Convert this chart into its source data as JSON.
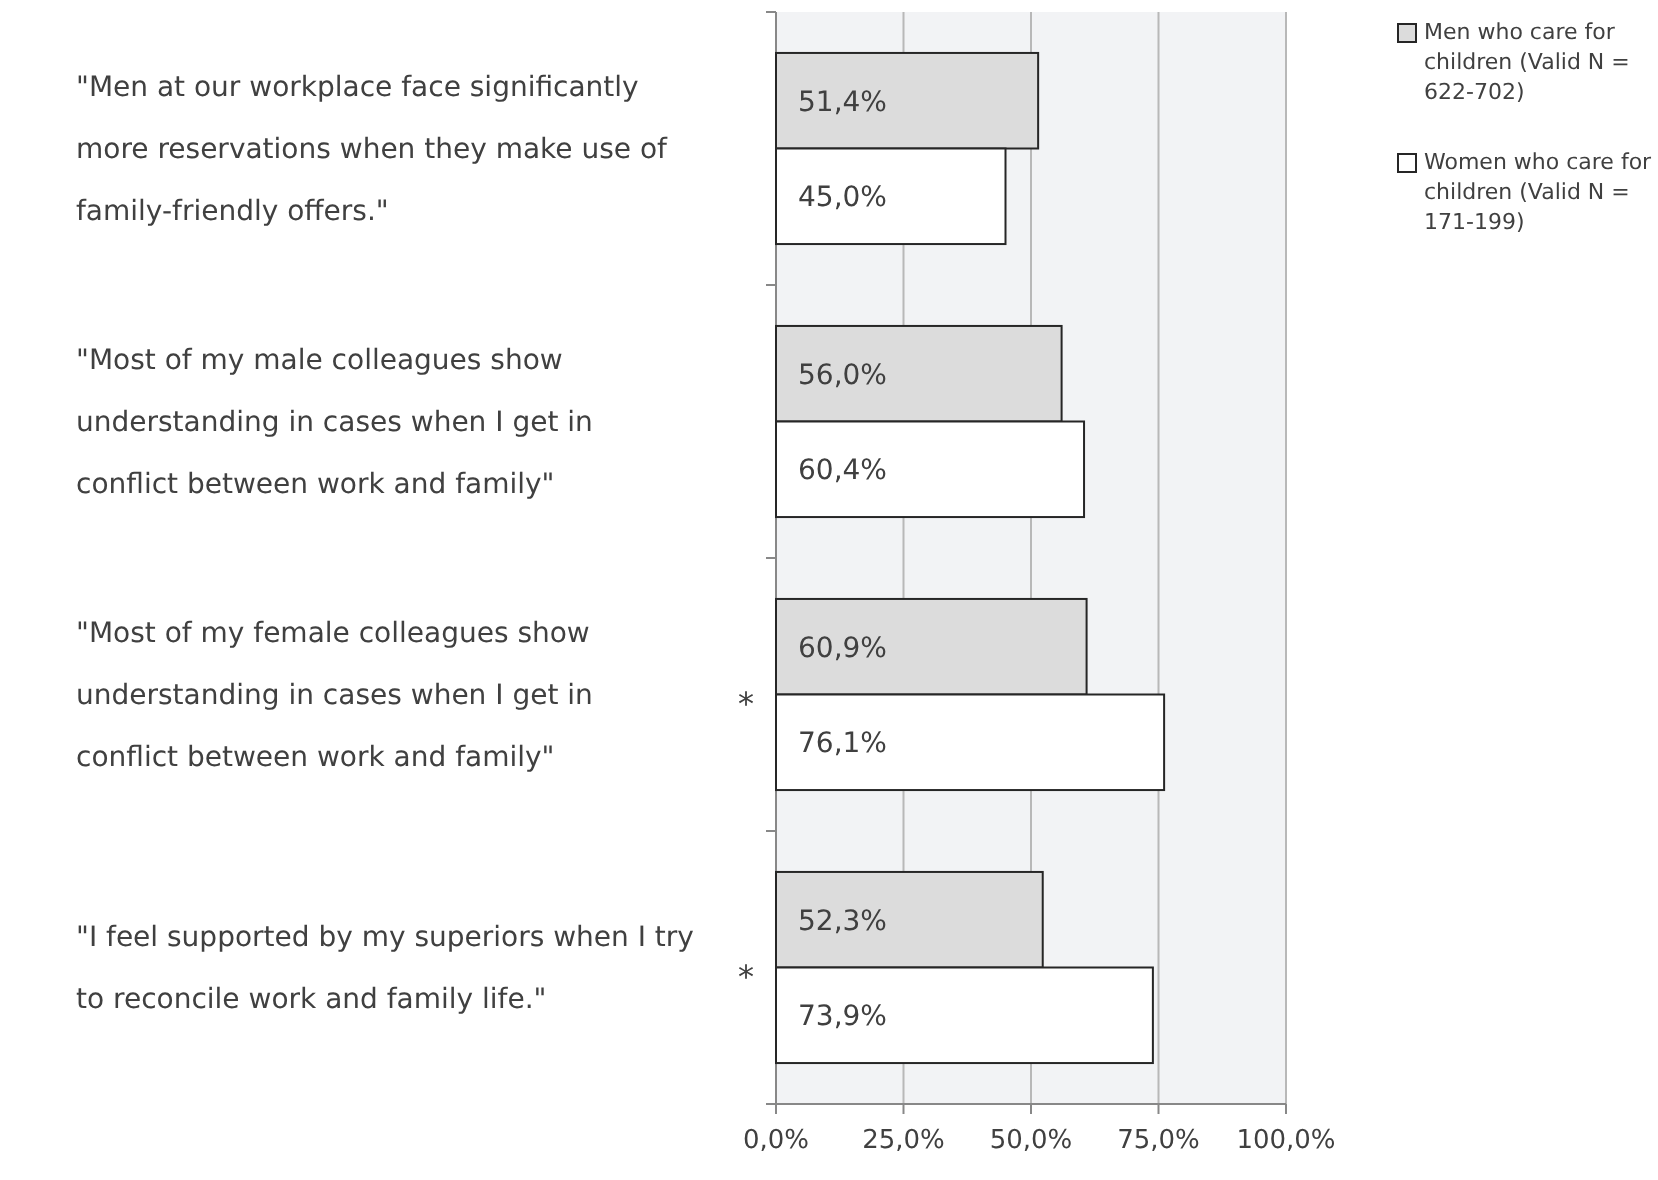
{
  "chart_data": {
    "type": "bar",
    "orientation": "horizontal",
    "categories": [
      "\"Men at our workplace face significantly more reservations when they make use of family-friendly offers.\"",
      "\"Most of my male colleagues show understanding in cases when I get in conflict between work and family\"",
      "\"Most of my female colleagues show understanding in cases when I get in conflict between work and family\"",
      "\"I feel supported by my superiors when I try to reconcile work and family life.\""
    ],
    "series": [
      {
        "name": "Men who care for children (Valid N = 622-702)",
        "color": "#dcdcdc",
        "values": [
          51.4,
          56.0,
          60.9,
          52.3
        ],
        "value_labels": [
          "51,4%",
          "56,0%",
          "60,9%",
          "52,3%"
        ]
      },
      {
        "name": "Women who care for children (Valid N = 171-199)",
        "color": "#ffffff",
        "values": [
          45.0,
          60.4,
          76.1,
          73.9
        ],
        "value_labels": [
          "45,0%",
          "60,4%",
          "76,1%",
          "73,9%"
        ]
      }
    ],
    "xlim": [
      0,
      100
    ],
    "xticks": [
      {
        "value": 0,
        "label": "0,0%"
      },
      {
        "value": 25,
        "label": "25,0%"
      },
      {
        "value": 50,
        "label": "50,0%"
      },
      {
        "value": 75,
        "label": "75,0%"
      },
      {
        "value": 100,
        "label": "100,0%"
      }
    ],
    "grid": "x",
    "legend": "right",
    "annotations": [
      "*",
      "*"
    ]
  }
}
